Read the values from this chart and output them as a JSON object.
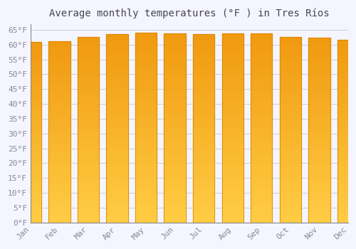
{
  "title": "Average monthly temperatures (°F ) in Tres Ríos",
  "months": [
    "Jan",
    "Feb",
    "Mar",
    "Apr",
    "May",
    "Jun",
    "Jul",
    "Aug",
    "Sep",
    "Oct",
    "Nov",
    "Dec"
  ],
  "values": [
    61.0,
    61.2,
    62.6,
    63.5,
    64.0,
    63.9,
    63.5,
    63.9,
    63.7,
    62.6,
    62.4,
    61.7
  ],
  "bar_color_bottom": "#FFCC44",
  "bar_color_top": "#F0A020",
  "bar_edge_color": "#D08000",
  "background_color": "#F5F5FF",
  "plot_bg_color": "#F5F5FF",
  "grid_color": "#CCCCDD",
  "text_color": "#888899",
  "title_color": "#444455",
  "ylim": [
    0,
    67
  ],
  "ytick_step": 5,
  "title_fontsize": 10,
  "tick_fontsize": 8,
  "bar_width": 0.75
}
